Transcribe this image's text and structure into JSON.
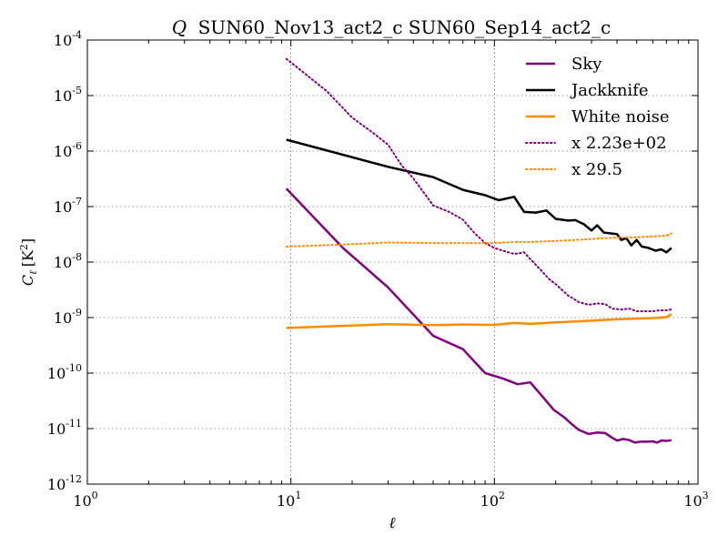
{
  "chart_data": {
    "type": "line",
    "title_symbol": "Q",
    "title": "SUN60_Nov13_act2_c SUN60_Sep14_act2_c",
    "xlabel": "ℓ",
    "ylabel_main": "C",
    "ylabel_sub": "ℓ",
    "ylabel_unit_open": "[K",
    "ylabel_unit_exp": "2",
    "ylabel_unit_close": "]",
    "xscale": "log",
    "yscale": "log",
    "xlim": [
      1,
      1000
    ],
    "ylim": [
      1e-12,
      0.0001
    ],
    "grid": true,
    "legend_position": "top-right",
    "x_ticks": [
      {
        "base": "10",
        "exp": "0",
        "value": 1
      },
      {
        "base": "10",
        "exp": "1",
        "value": 10
      },
      {
        "base": "10",
        "exp": "2",
        "value": 100
      },
      {
        "base": "10",
        "exp": "3",
        "value": 1000
      }
    ],
    "y_ticks": [
      {
        "base": "10",
        "exp": "-12",
        "value": 1e-12
      },
      {
        "base": "10",
        "exp": "-11",
        "value": 1e-11
      },
      {
        "base": "10",
        "exp": "-10",
        "value": 1e-10
      },
      {
        "base": "10",
        "exp": "-9",
        "value": 1e-09
      },
      {
        "base": "10",
        "exp": "-8",
        "value": 1e-08
      },
      {
        "base": "10",
        "exp": "-7",
        "value": 1e-07
      },
      {
        "base": "10",
        "exp": "-6",
        "value": 1e-06
      },
      {
        "base": "10",
        "exp": "-5",
        "value": 1e-05
      },
      {
        "base": "10",
        "exp": "-4",
        "value": 0.0001
      }
    ],
    "series": [
      {
        "name": "Sky",
        "color": "#800080",
        "style": "solid",
        "points": [
          [
            9.5,
            2.1e-07
          ],
          [
            18,
            1.8e-08
          ],
          [
            30,
            3.5e-09
          ],
          [
            50,
            4.7e-10
          ],
          [
            70,
            2.7e-10
          ],
          [
            90,
            1e-10
          ],
          [
            110,
            8e-11
          ],
          [
            130,
            6.3e-11
          ],
          [
            150,
            6.8e-11
          ],
          [
            170,
            4e-11
          ],
          [
            195,
            2.2e-11
          ],
          [
            220,
            1.6e-11
          ],
          [
            240,
            1.2e-11
          ],
          [
            260,
            9.5e-12
          ],
          [
            290,
            8e-12
          ],
          [
            320,
            8.5e-12
          ],
          [
            350,
            8.3e-12
          ],
          [
            380,
            6.8e-12
          ],
          [
            400,
            6.1e-12
          ],
          [
            430,
            6.5e-12
          ],
          [
            460,
            6.2e-12
          ],
          [
            490,
            5.6e-12
          ],
          [
            520,
            5.8e-12
          ],
          [
            560,
            5.8e-12
          ],
          [
            600,
            5.9e-12
          ],
          [
            630,
            5.6e-12
          ],
          [
            660,
            6.1e-12
          ],
          [
            700,
            6e-12
          ],
          [
            740,
            6.2e-12
          ]
        ]
      },
      {
        "name": "Jackknife",
        "color": "#000000",
        "style": "solid",
        "points": [
          [
            9.5,
            1.6e-06
          ],
          [
            30,
            5.2e-07
          ],
          [
            50,
            3.4e-07
          ],
          [
            70,
            2e-07
          ],
          [
            90,
            1.6e-07
          ],
          [
            105,
            1.3e-07
          ],
          [
            125,
            1.5e-07
          ],
          [
            140,
            8e-08
          ],
          [
            160,
            7.8e-08
          ],
          [
            180,
            8.5e-08
          ],
          [
            200,
            6e-08
          ],
          [
            230,
            5.6e-08
          ],
          [
            250,
            5.7e-08
          ],
          [
            275,
            4.8e-08
          ],
          [
            300,
            3.7e-08
          ],
          [
            320,
            4.6e-08
          ],
          [
            345,
            3.4e-08
          ],
          [
            370,
            3.3e-08
          ],
          [
            400,
            3.2e-08
          ],
          [
            420,
            2.5e-08
          ],
          [
            445,
            2.7e-08
          ],
          [
            470,
            2e-08
          ],
          [
            500,
            2.5e-08
          ],
          [
            530,
            1.9e-08
          ],
          [
            570,
            1.8e-08
          ],
          [
            620,
            1.6e-08
          ],
          [
            660,
            1.7e-08
          ],
          [
            700,
            1.5e-08
          ],
          [
            740,
            1.8e-08
          ]
        ]
      },
      {
        "name": "White noise",
        "color": "#FF8C00",
        "style": "solid",
        "points": [
          [
            9.5,
            6.5e-10
          ],
          [
            30,
            7.6e-10
          ],
          [
            50,
            7.3e-10
          ],
          [
            70,
            7.5e-10
          ],
          [
            100,
            7.4e-10
          ],
          [
            125,
            8e-10
          ],
          [
            150,
            7.7e-10
          ],
          [
            200,
            8.2e-10
          ],
          [
            250,
            8.5e-10
          ],
          [
            300,
            8.8e-10
          ],
          [
            350,
            9.1e-10
          ],
          [
            400,
            9.3e-10
          ],
          [
            500,
            9.6e-10
          ],
          [
            600,
            9.8e-10
          ],
          [
            700,
            1.02e-09
          ],
          [
            740,
            1.15e-09
          ]
        ]
      },
      {
        "name": "x 2.23e+02",
        "color": "#800080",
        "style": "dotted",
        "points": [
          [
            9.5,
            4.6e-05
          ],
          [
            15,
            1.2e-05
          ],
          [
            20,
            4e-06
          ],
          [
            25,
            2.2e-06
          ],
          [
            30,
            1.3e-06
          ],
          [
            35,
            5.5e-07
          ],
          [
            40,
            3.2e-07
          ],
          [
            50,
            1.05e-07
          ],
          [
            60,
            8e-08
          ],
          [
            70,
            5.8e-08
          ],
          [
            80,
            3.3e-08
          ],
          [
            90,
            2.2e-08
          ],
          [
            100,
            1.8e-08
          ],
          [
            110,
            1.6e-08
          ],
          [
            125,
            1.4e-08
          ],
          [
            140,
            1.5e-08
          ],
          [
            155,
            1e-08
          ],
          [
            170,
            7e-09
          ],
          [
            185,
            5e-09
          ],
          [
            200,
            4e-09
          ],
          [
            230,
            2.5e-09
          ],
          [
            260,
            1.9e-09
          ],
          [
            290,
            1.7e-09
          ],
          [
            320,
            1.8e-09
          ],
          [
            350,
            1.75e-09
          ],
          [
            380,
            1.45e-09
          ],
          [
            420,
            1.4e-09
          ],
          [
            460,
            1.45e-09
          ],
          [
            500,
            1.3e-09
          ],
          [
            550,
            1.3e-09
          ],
          [
            600,
            1.3e-09
          ],
          [
            650,
            1.35e-09
          ],
          [
            700,
            1.35e-09
          ],
          [
            740,
            1.4e-09
          ]
        ]
      },
      {
        "name": "x 29.5",
        "color": "#FF8C00",
        "style": "dotted",
        "points": [
          [
            9.5,
            1.9e-08
          ],
          [
            20,
            2.1e-08
          ],
          [
            30,
            2.25e-08
          ],
          [
            50,
            2.2e-08
          ],
          [
            70,
            2.2e-08
          ],
          [
            100,
            2.2e-08
          ],
          [
            125,
            2.3e-08
          ],
          [
            150,
            2.3e-08
          ],
          [
            200,
            2.4e-08
          ],
          [
            250,
            2.5e-08
          ],
          [
            300,
            2.6e-08
          ],
          [
            350,
            2.7e-08
          ],
          [
            400,
            2.75e-08
          ],
          [
            500,
            2.8e-08
          ],
          [
            600,
            2.9e-08
          ],
          [
            700,
            3e-08
          ],
          [
            740,
            3.3e-08
          ]
        ]
      }
    ]
  }
}
